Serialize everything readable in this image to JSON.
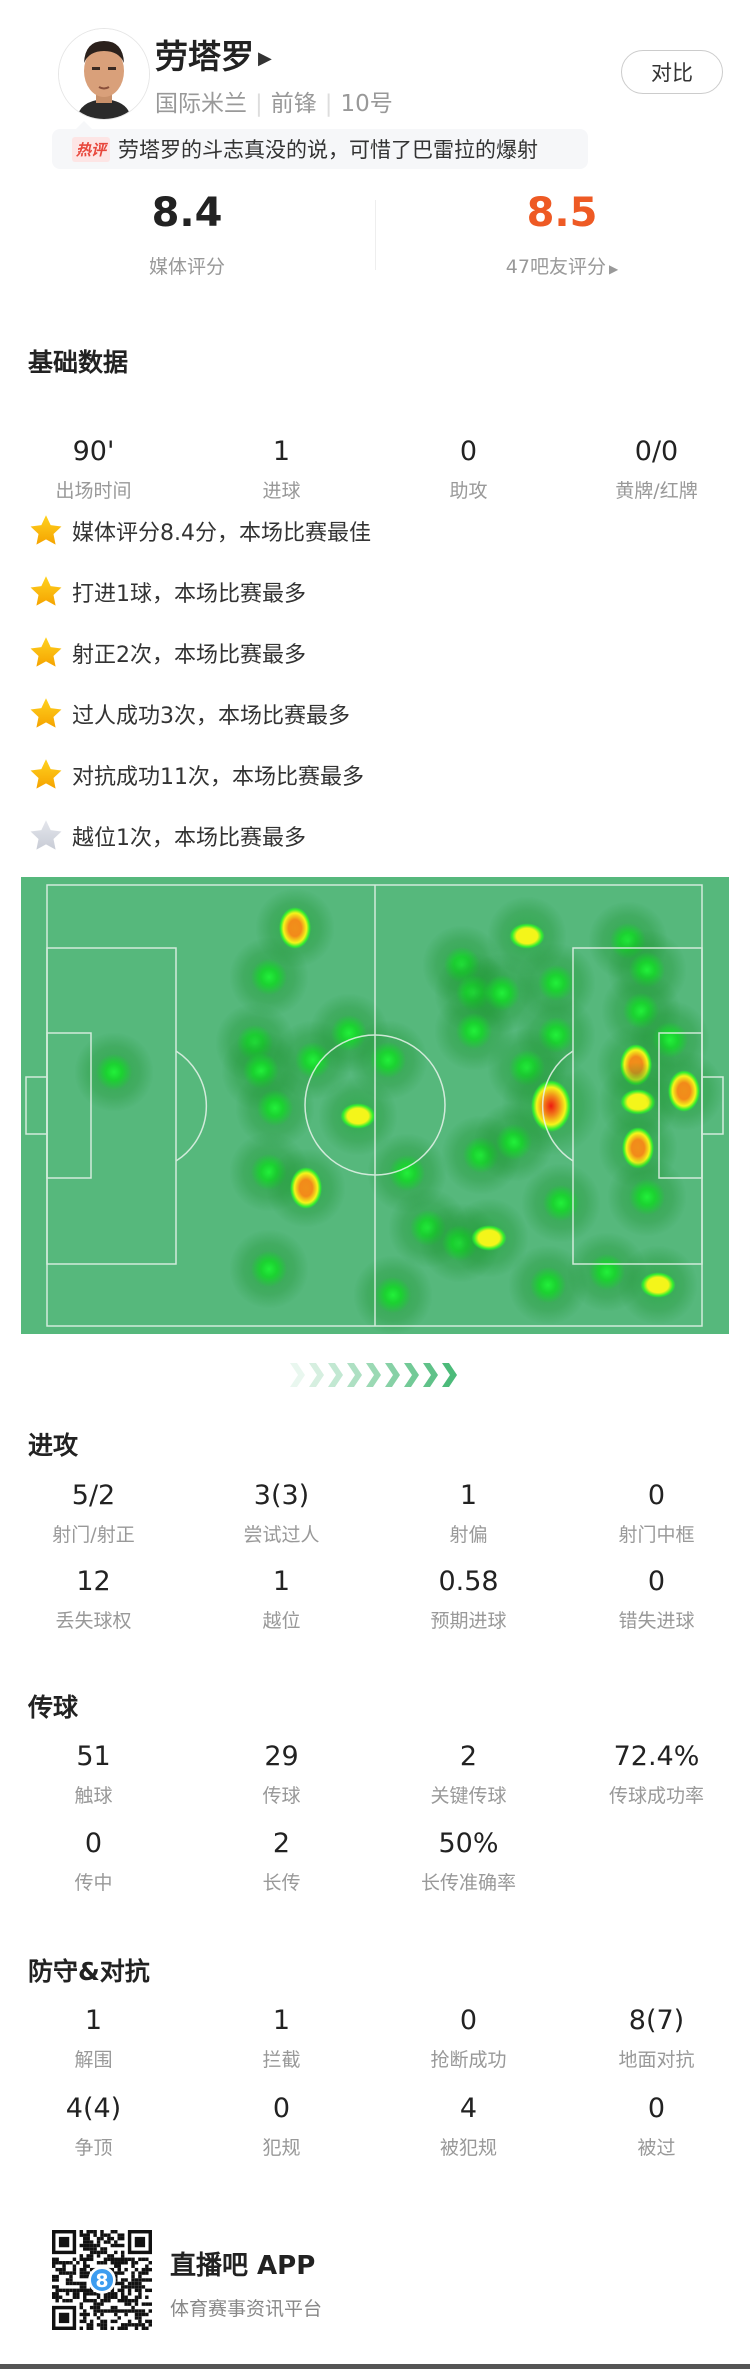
{
  "player": {
    "name": "劳塔罗",
    "team": "国际米兰",
    "position": "前锋",
    "number": "10号",
    "compare_label": "对比",
    "hot_tag": "热评",
    "hot_comment": "劳塔罗的斗志真没的说，可惜了巴雷拉的爆射"
  },
  "ratings": {
    "media_value": "8.4",
    "media_label": "媒体评分",
    "fan_value": "8.5",
    "fan_label": "47吧友评分",
    "fan_color": "#ee5a24"
  },
  "basic": {
    "title": "基础数据",
    "stats": [
      {
        "value": "90'",
        "label": "出场时间"
      },
      {
        "value": "1",
        "label": "进球"
      },
      {
        "value": "0",
        "label": "助攻"
      },
      {
        "value": "0/0",
        "label": "黄牌/红牌"
      }
    ]
  },
  "highlights": [
    {
      "text": "媒体评分8.4分，本场比赛最佳",
      "star": "gold"
    },
    {
      "text": "打进1球，本场比赛最多",
      "star": "gold"
    },
    {
      "text": "射正2次，本场比赛最多",
      "star": "gold"
    },
    {
      "text": "过人成功3次，本场比赛最多",
      "star": "gold"
    },
    {
      "text": "对抗成功11次，本场比赛最多",
      "star": "gold"
    },
    {
      "text": "越位1次，本场比赛最多",
      "star": "gray"
    }
  ],
  "heatmap": {
    "pitch_color": "#56b87c",
    "points": [
      {
        "x": 38.7,
        "y": 11.2,
        "level": 3
      },
      {
        "x": 35,
        "y": 21.8,
        "level": 1
      },
      {
        "x": 13.1,
        "y": 42.7,
        "level": 1
      },
      {
        "x": 33,
        "y": 36.4,
        "level": 1
      },
      {
        "x": 33.9,
        "y": 42.5,
        "level": 1
      },
      {
        "x": 35.9,
        "y": 50.6,
        "level": 1
      },
      {
        "x": 41.3,
        "y": 40,
        "level": 1
      },
      {
        "x": 46.3,
        "y": 34.2,
        "level": 1
      },
      {
        "x": 47.6,
        "y": 52.3,
        "level": 2
      },
      {
        "x": 51.8,
        "y": 40,
        "level": 1
      },
      {
        "x": 35,
        "y": 64.5,
        "level": 1
      },
      {
        "x": 40.3,
        "y": 68.1,
        "level": 3
      },
      {
        "x": 35,
        "y": 85.8,
        "level": 1
      },
      {
        "x": 54.5,
        "y": 64.8,
        "level": 1
      },
      {
        "x": 52.6,
        "y": 91.5,
        "level": 1
      },
      {
        "x": 57.5,
        "y": 76.9,
        "level": 1
      },
      {
        "x": 62,
        "y": 80,
        "level": 1
      },
      {
        "x": 66.1,
        "y": 79,
        "level": 2
      },
      {
        "x": 65,
        "y": 60.8,
        "level": 1
      },
      {
        "x": 69.7,
        "y": 57.9,
        "level": 1
      },
      {
        "x": 62.3,
        "y": 19.2,
        "level": 1
      },
      {
        "x": 64,
        "y": 25.4,
        "level": 1
      },
      {
        "x": 68,
        "y": 25.4,
        "level": 1
      },
      {
        "x": 64,
        "y": 33.8,
        "level": 1
      },
      {
        "x": 71.5,
        "y": 13,
        "level": 2
      },
      {
        "x": 75.5,
        "y": 23.2,
        "level": 1
      },
      {
        "x": 75.5,
        "y": 34.5,
        "level": 1
      },
      {
        "x": 71.5,
        "y": 41.8,
        "level": 1
      },
      {
        "x": 74.9,
        "y": 50.2,
        "level": 4
      },
      {
        "x": 76.3,
        "y": 71.4,
        "level": 1
      },
      {
        "x": 74.5,
        "y": 89.3,
        "level": 1
      },
      {
        "x": 85.7,
        "y": 14.1,
        "level": 1
      },
      {
        "x": 88.4,
        "y": 20.3,
        "level": 1
      },
      {
        "x": 87.6,
        "y": 29.4,
        "level": 1
      },
      {
        "x": 91.7,
        "y": 35.6,
        "level": 1
      },
      {
        "x": 86.9,
        "y": 41.1,
        "level": 3
      },
      {
        "x": 87.1,
        "y": 49.3,
        "level": 2
      },
      {
        "x": 93.6,
        "y": 46.9,
        "level": 3
      },
      {
        "x": 87.1,
        "y": 59.3,
        "level": 3
      },
      {
        "x": 88.4,
        "y": 70,
        "level": 1
      },
      {
        "x": 82.8,
        "y": 86.4,
        "level": 1
      },
      {
        "x": 90,
        "y": 89.3,
        "level": 2
      }
    ]
  },
  "attack": {
    "title": "进攻",
    "stats": [
      {
        "value": "5/2",
        "label": "射门/射正"
      },
      {
        "value": "3(3)",
        "label": "尝试过人"
      },
      {
        "value": "1",
        "label": "射偏"
      },
      {
        "value": "0",
        "label": "射门中框"
      },
      {
        "value": "12",
        "label": "丢失球权"
      },
      {
        "value": "1",
        "label": "越位"
      },
      {
        "value": "0.58",
        "label": "预期进球"
      },
      {
        "value": "0",
        "label": "错失进球"
      }
    ]
  },
  "passing": {
    "title": "传球",
    "stats": [
      {
        "value": "51",
        "label": "触球"
      },
      {
        "value": "29",
        "label": "传球"
      },
      {
        "value": "2",
        "label": "关键传球"
      },
      {
        "value": "72.4%",
        "label": "传球成功率"
      },
      {
        "value": "0",
        "label": "传中"
      },
      {
        "value": "2",
        "label": "长传"
      },
      {
        "value": "50%",
        "label": "长传准确率"
      }
    ]
  },
  "defense": {
    "title": "防守&对抗",
    "stats": [
      {
        "value": "1",
        "label": "解围"
      },
      {
        "value": "1",
        "label": "拦截"
      },
      {
        "value": "0",
        "label": "抢断成功"
      },
      {
        "value": "8(7)",
        "label": "地面对抗"
      },
      {
        "value": "4(4)",
        "label": "争顶"
      },
      {
        "value": "0",
        "label": "犯规"
      },
      {
        "value": "4",
        "label": "被犯规"
      },
      {
        "value": "0",
        "label": "被过"
      }
    ]
  },
  "footer": {
    "app_name": "直播吧 APP",
    "app_desc": "体育赛事资讯平台",
    "qr_badge": "8"
  }
}
